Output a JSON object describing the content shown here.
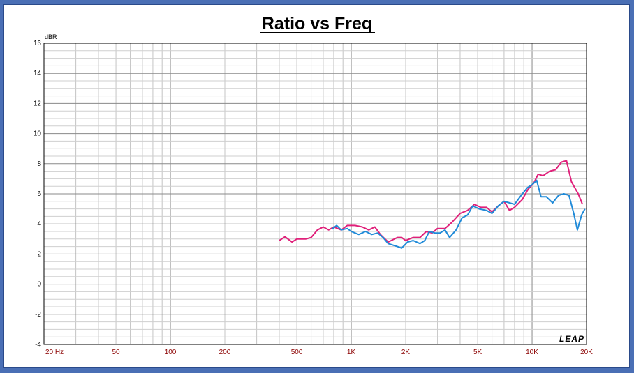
{
  "chart_data": {
    "type": "line",
    "title": "Ratio vs Freq",
    "ylabel": "dBR",
    "xlabel": "",
    "xscale": "log",
    "xlim": [
      20,
      20000
    ],
    "ylim": [
      -4,
      16
    ],
    "yticks": [
      16,
      14,
      12,
      10,
      8,
      6,
      4,
      2,
      0,
      -2,
      -4
    ],
    "xticks": [
      {
        "value": 20,
        "label": "20  Hz"
      },
      {
        "value": 50,
        "label": "50"
      },
      {
        "value": 100,
        "label": "100"
      },
      {
        "value": 200,
        "label": "200"
      },
      {
        "value": 500,
        "label": "500"
      },
      {
        "value": 1000,
        "label": "1K"
      },
      {
        "value": 2000,
        "label": "2K"
      },
      {
        "value": 5000,
        "label": "5K"
      },
      {
        "value": 10000,
        "label": "10K"
      },
      {
        "value": 20000,
        "label": "20K"
      }
    ],
    "grid": true,
    "logo": "LEAP",
    "series": [
      {
        "color": "#e0207a",
        "points": [
          [
            400,
            2.9
          ],
          [
            430,
            3.15
          ],
          [
            470,
            2.8
          ],
          [
            500,
            3.0
          ],
          [
            560,
            3.0
          ],
          [
            600,
            3.1
          ],
          [
            650,
            3.6
          ],
          [
            700,
            3.8
          ],
          [
            750,
            3.6
          ],
          [
            800,
            3.8
          ],
          [
            880,
            3.6
          ],
          [
            950,
            3.9
          ],
          [
            1050,
            3.9
          ],
          [
            1150,
            3.8
          ],
          [
            1250,
            3.6
          ],
          [
            1350,
            3.8
          ],
          [
            1450,
            3.3
          ],
          [
            1600,
            2.8
          ],
          [
            1800,
            3.1
          ],
          [
            1900,
            3.1
          ],
          [
            2000,
            2.9
          ],
          [
            2200,
            3.1
          ],
          [
            2400,
            3.1
          ],
          [
            2600,
            3.5
          ],
          [
            2800,
            3.4
          ],
          [
            3000,
            3.7
          ],
          [
            3300,
            3.7
          ],
          [
            3600,
            4.1
          ],
          [
            4000,
            4.7
          ],
          [
            4400,
            4.9
          ],
          [
            4800,
            5.3
          ],
          [
            5200,
            5.1
          ],
          [
            5600,
            5.1
          ],
          [
            6000,
            4.8
          ],
          [
            6500,
            5.2
          ],
          [
            7000,
            5.5
          ],
          [
            7500,
            4.9
          ],
          [
            8000,
            5.1
          ],
          [
            8800,
            5.6
          ],
          [
            9500,
            6.3
          ],
          [
            10200,
            6.7
          ],
          [
            10800,
            7.3
          ],
          [
            11500,
            7.2
          ],
          [
            12500,
            7.5
          ],
          [
            13500,
            7.6
          ],
          [
            14500,
            8.1
          ],
          [
            15500,
            8.2
          ],
          [
            16500,
            6.8
          ],
          [
            18000,
            6.0
          ],
          [
            19000,
            5.3
          ]
        ]
      },
      {
        "color": "#1f8ad8",
        "points": [
          [
            780,
            3.65
          ],
          [
            830,
            3.9
          ],
          [
            880,
            3.6
          ],
          [
            950,
            3.7
          ],
          [
            1000,
            3.5
          ],
          [
            1100,
            3.3
          ],
          [
            1200,
            3.5
          ],
          [
            1300,
            3.3
          ],
          [
            1400,
            3.4
          ],
          [
            1500,
            3.1
          ],
          [
            1600,
            2.7
          ],
          [
            1800,
            2.5
          ],
          [
            1900,
            2.4
          ],
          [
            2050,
            2.8
          ],
          [
            2200,
            2.9
          ],
          [
            2400,
            2.7
          ],
          [
            2550,
            2.9
          ],
          [
            2700,
            3.5
          ],
          [
            2900,
            3.4
          ],
          [
            3100,
            3.4
          ],
          [
            3300,
            3.6
          ],
          [
            3500,
            3.1
          ],
          [
            3800,
            3.6
          ],
          [
            4100,
            4.4
          ],
          [
            4400,
            4.6
          ],
          [
            4700,
            5.2
          ],
          [
            5100,
            5.0
          ],
          [
            5600,
            4.9
          ],
          [
            6000,
            4.7
          ],
          [
            6500,
            5.2
          ],
          [
            7000,
            5.5
          ],
          [
            7500,
            5.4
          ],
          [
            8000,
            5.3
          ],
          [
            8700,
            5.9
          ],
          [
            9400,
            6.4
          ],
          [
            10000,
            6.6
          ],
          [
            10600,
            6.9
          ],
          [
            11200,
            5.8
          ],
          [
            12000,
            5.8
          ],
          [
            13000,
            5.4
          ],
          [
            14000,
            5.9
          ],
          [
            15000,
            6.0
          ],
          [
            16000,
            5.9
          ],
          [
            17000,
            4.7
          ],
          [
            17800,
            3.6
          ],
          [
            18800,
            4.6
          ],
          [
            19600,
            5.0
          ]
        ]
      }
    ]
  }
}
